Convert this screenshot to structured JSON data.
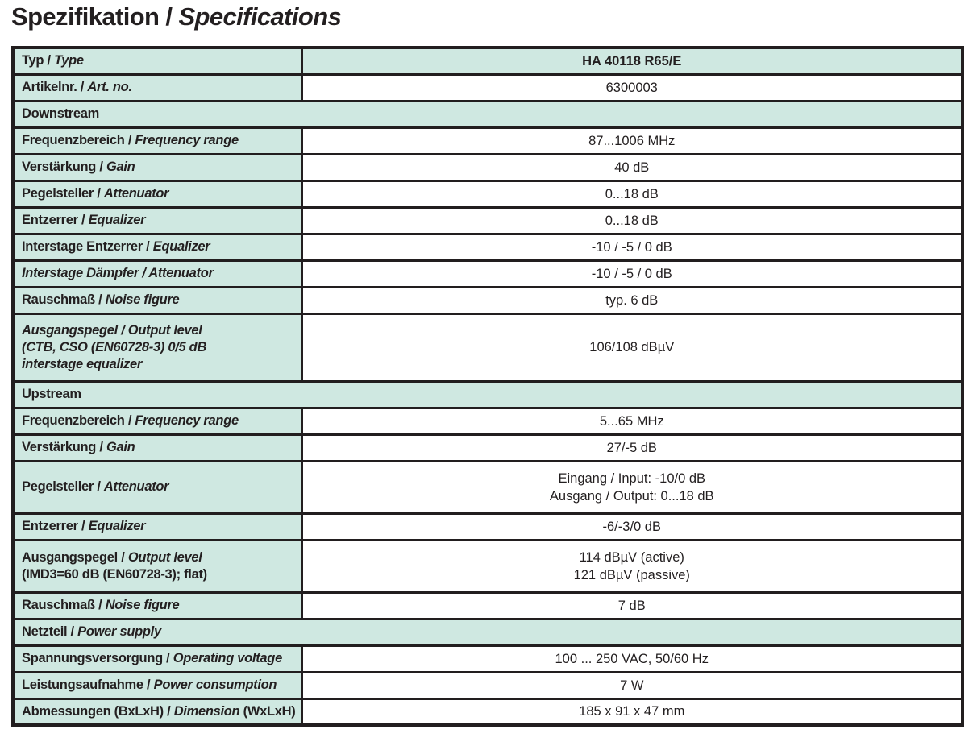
{
  "title": {
    "de_part": "Spezifikation / ",
    "en_part": "Specifications"
  },
  "colors": {
    "cell_fill_teal": "#cfe8e1",
    "border": "#221e1f",
    "text": "#231f20",
    "page_background": "#ffffff"
  },
  "table": {
    "rows": [
      {
        "kind": "spec",
        "label": [
          [
            {
              "t": "Typ / "
            },
            {
              "t": "Type",
              "i": true
            }
          ]
        ],
        "value": [
          "HA 40118 R65/E"
        ],
        "value_bold": true,
        "value_teal": true
      },
      {
        "kind": "spec",
        "label": [
          [
            {
              "t": "Artikelnr. / "
            },
            {
              "t": "Art. no.",
              "i": true
            }
          ]
        ],
        "value": [
          "6300003"
        ]
      },
      {
        "kind": "section",
        "label": [
          [
            {
              "t": "Downstream"
            }
          ]
        ]
      },
      {
        "kind": "spec",
        "label": [
          [
            {
              "t": "Frequenzbereich / "
            },
            {
              "t": "Frequency range",
              "i": true
            }
          ]
        ],
        "value": [
          "87...1006 MHz"
        ]
      },
      {
        "kind": "spec",
        "label": [
          [
            {
              "t": "Verstärkung / "
            },
            {
              "t": "Gain",
              "i": true
            }
          ]
        ],
        "value": [
          "40 dB"
        ]
      },
      {
        "kind": "spec",
        "label": [
          [
            {
              "t": "Pegelsteller / "
            },
            {
              "t": "Attenuator",
              "i": true
            }
          ]
        ],
        "value": [
          "0...18 dB"
        ]
      },
      {
        "kind": "spec",
        "label": [
          [
            {
              "t": "Entzerrer / "
            },
            {
              "t": "Equalizer",
              "i": true
            }
          ]
        ],
        "value": [
          "0...18 dB"
        ]
      },
      {
        "kind": "spec",
        "label": [
          [
            {
              "t": "Interstage Entzerrer / "
            },
            {
              "t": "Equalizer",
              "i": true
            }
          ]
        ],
        "value": [
          "-10 / -5 / 0 dB"
        ]
      },
      {
        "kind": "spec",
        "label": [
          [
            {
              "t": "Interstage Dämpfer / Attenuator",
              "i": true
            }
          ]
        ],
        "value": [
          "-10 / -5 / 0 dB"
        ]
      },
      {
        "kind": "spec",
        "label": [
          [
            {
              "t": "Rauschmaß / "
            },
            {
              "t": "Noise figure",
              "i": true
            }
          ]
        ],
        "value": [
          "typ. 6 dB"
        ]
      },
      {
        "kind": "spec",
        "label": [
          [
            {
              "t": "Ausgangspegel / Output level",
              "i": true
            }
          ],
          [
            {
              "t": "(CTB, CSO (EN60728-3) 0/5 dB",
              "i": true
            }
          ],
          [
            {
              "t": "interstage equalizer",
              "i": true
            }
          ]
        ],
        "value": [
          "106/108 dBµV"
        ]
      },
      {
        "kind": "section",
        "label": [
          [
            {
              "t": "Upstream"
            }
          ]
        ]
      },
      {
        "kind": "spec",
        "label": [
          [
            {
              "t": "Frequenzbereich / "
            },
            {
              "t": "Frequency range",
              "i": true
            }
          ]
        ],
        "value": [
          "5...65 MHz"
        ]
      },
      {
        "kind": "spec",
        "label": [
          [
            {
              "t": "Verstärkung / "
            },
            {
              "t": "Gain",
              "i": true
            }
          ]
        ],
        "value": [
          "27/-5 dB"
        ]
      },
      {
        "kind": "spec",
        "label": [
          [
            {
              "t": "Pegelsteller / "
            },
            {
              "t": "Attenuator",
              "i": true
            }
          ]
        ],
        "value": [
          "Eingang / Input: -10/0 dB",
          "Ausgang / Output: 0...18 dB"
        ]
      },
      {
        "kind": "spec",
        "label": [
          [
            {
              "t": "Entzerrer / "
            },
            {
              "t": "Equalizer",
              "i": true
            }
          ]
        ],
        "value": [
          "-6/-3/0 dB"
        ]
      },
      {
        "kind": "spec",
        "label": [
          [
            {
              "t": "Ausgangspegel / "
            },
            {
              "t": "Output level",
              "i": true
            }
          ],
          [
            {
              "t": "(IMD3=60 dB (EN60728-3); flat)"
            }
          ]
        ],
        "value": [
          "114 dBµV (active)",
          "121 dBµV (passive)"
        ]
      },
      {
        "kind": "spec",
        "label": [
          [
            {
              "t": "Rauschmaß / "
            },
            {
              "t": "Noise figure",
              "i": true
            }
          ]
        ],
        "value": [
          "7 dB"
        ]
      },
      {
        "kind": "section",
        "label": [
          [
            {
              "t": "Netzteil / "
            },
            {
              "t": "Power supply",
              "i": true
            }
          ]
        ]
      },
      {
        "kind": "spec",
        "label": [
          [
            {
              "t": "Spannungsversorgung / "
            },
            {
              "t": "Operating voltage",
              "i": true
            }
          ]
        ],
        "value": [
          "100 ... 250 VAC, 50/60 Hz"
        ]
      },
      {
        "kind": "spec",
        "label": [
          [
            {
              "t": "Leistungsaufnahme / "
            },
            {
              "t": "Power consumption",
              "i": true
            }
          ]
        ],
        "value": [
          "7 W"
        ]
      },
      {
        "kind": "spec",
        "label": [
          [
            {
              "t": "Abmessungen (BxLxH) / "
            },
            {
              "t": "Dimension",
              "i": true
            },
            {
              "t": " (WxLxH)"
            }
          ]
        ],
        "value": [
          "185 x 91 x 47 mm"
        ]
      }
    ]
  }
}
